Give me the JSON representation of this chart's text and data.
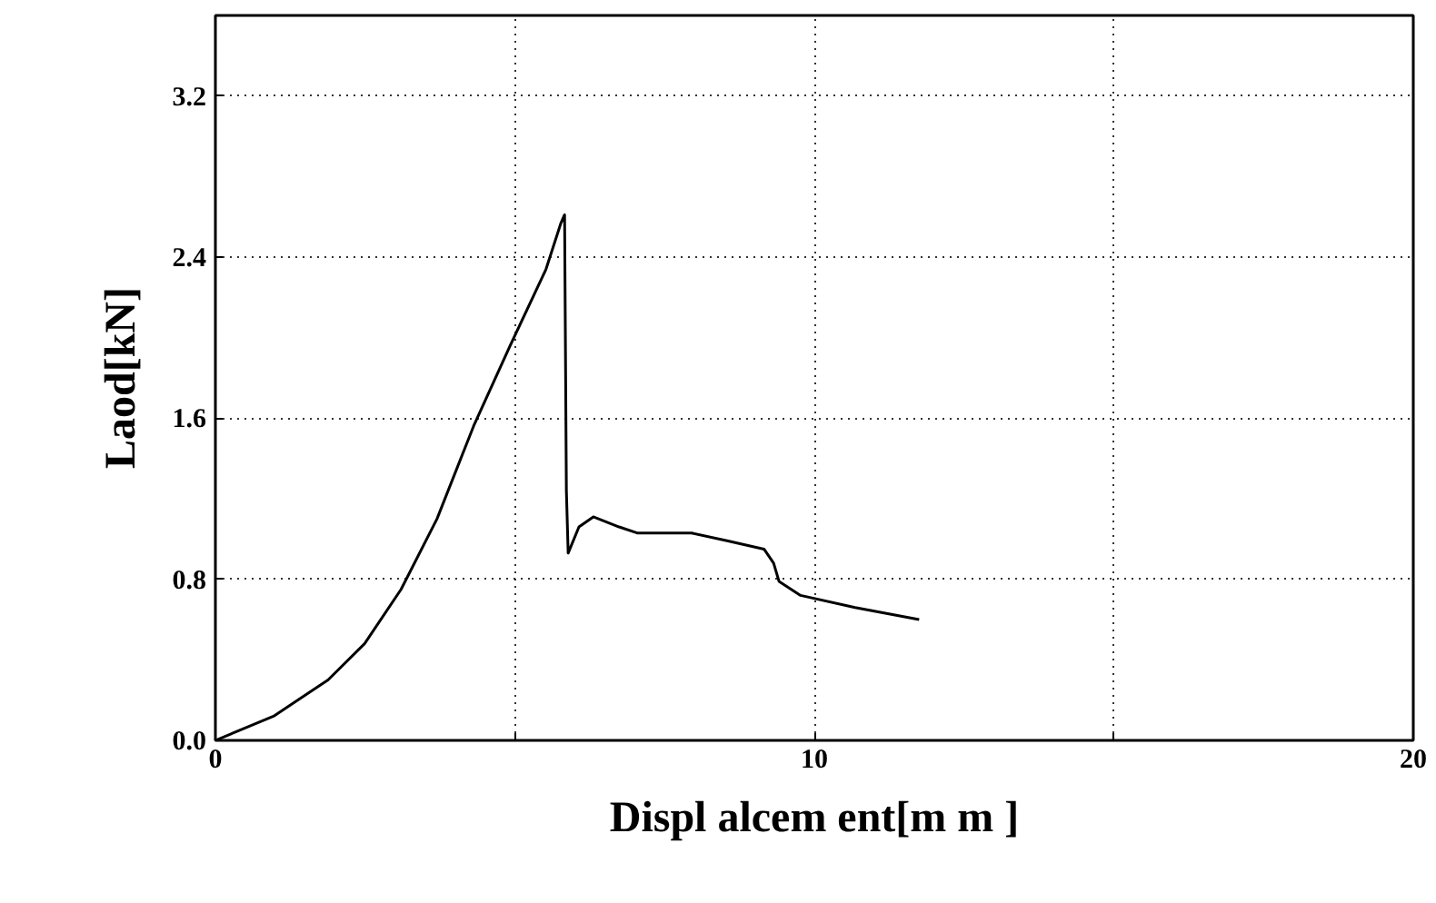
{
  "chart_data": {
    "type": "line",
    "xlabel": "Displ alcem ent[m m ]",
    "ylabel": "Laod[kN]",
    "x": [
      0,
      0.97,
      1.88,
      2.49,
      3.1,
      3.7,
      4.31,
      4.92,
      5.52,
      5.77,
      5.83,
      5.86,
      5.89,
      6.07,
      6.31,
      6.74,
      7.04,
      7.95,
      8.56,
      9.16,
      9.32,
      9.41,
      9.77,
      10.68,
      11.75
    ],
    "series": [
      {
        "color": "#000000",
        "values": [
          0,
          0.12,
          0.3,
          0.48,
          0.75,
          1.1,
          1.56,
          1.96,
          2.34,
          2.57,
          2.61,
          1.24,
          0.93,
          1.06,
          1.11,
          1.06,
          1.03,
          1.03,
          0.99,
          0.95,
          0.88,
          0.79,
          0.72,
          0.66,
          0.6
        ]
      }
    ],
    "xlim": [
      0,
      20
    ],
    "ylim": [
      0,
      3.6
    ],
    "xticks": [
      0,
      {
        "value": 5,
        "label": null
      },
      10,
      {
        "value": 15,
        "label": null
      },
      20
    ],
    "yticks": [
      {
        "value": 0,
        "label": "0.0"
      },
      {
        "value": 0.8,
        "label": "0.8"
      },
      {
        "value": 1.6,
        "label": "1.6"
      },
      {
        "value": 2.4,
        "label": "2.4"
      },
      {
        "value": 3.2,
        "label": "3.2"
      }
    ],
    "grid": true,
    "marker": "none",
    "line_style": "solid"
  }
}
